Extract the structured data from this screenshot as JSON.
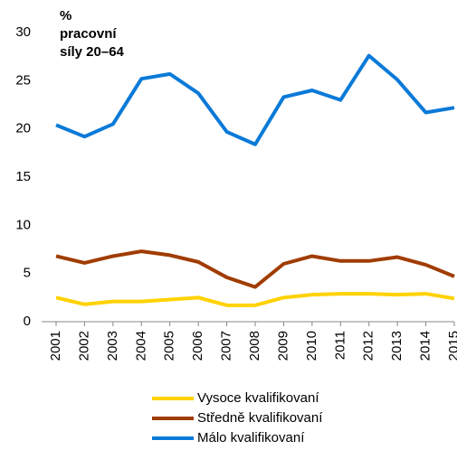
{
  "chart_data": {
    "type": "line",
    "ylabel": [
      "%",
      "pracovní",
      "síly 20–64"
    ],
    "x": [
      "2001",
      "2002",
      "2003",
      "2004",
      "2005",
      "2006",
      "2007",
      "2008",
      "2009",
      "2010",
      "2011",
      "2012",
      "2013",
      "2014",
      "2015"
    ],
    "series": [
      {
        "name": "Vysoce kvalifikovaní",
        "color": "#ffd200",
        "values": [
          2.5,
          1.8,
          2.1,
          2.1,
          2.3,
          2.5,
          1.7,
          1.7,
          2.5,
          2.8,
          2.9,
          2.9,
          2.8,
          2.9,
          2.4
        ]
      },
      {
        "name": "Středně kvalifikovaní",
        "color": "#a03c00",
        "values": [
          6.8,
          6.1,
          6.8,
          7.3,
          6.9,
          6.2,
          4.6,
          3.6,
          6.0,
          6.8,
          6.3,
          6.3,
          6.7,
          5.9,
          4.7
        ]
      },
      {
        "name": "Málo kvalifikovaní",
        "color": "#0a7ad8",
        "values": [
          20.4,
          19.2,
          20.5,
          25.2,
          25.7,
          23.7,
          19.7,
          18.4,
          23.3,
          24.0,
          23.0,
          27.6,
          25.1,
          21.7,
          22.2
        ]
      }
    ],
    "ylim": [
      0,
      30
    ],
    "yticks": [
      0,
      5,
      10,
      15,
      20,
      25,
      30
    ],
    "grid": false
  }
}
